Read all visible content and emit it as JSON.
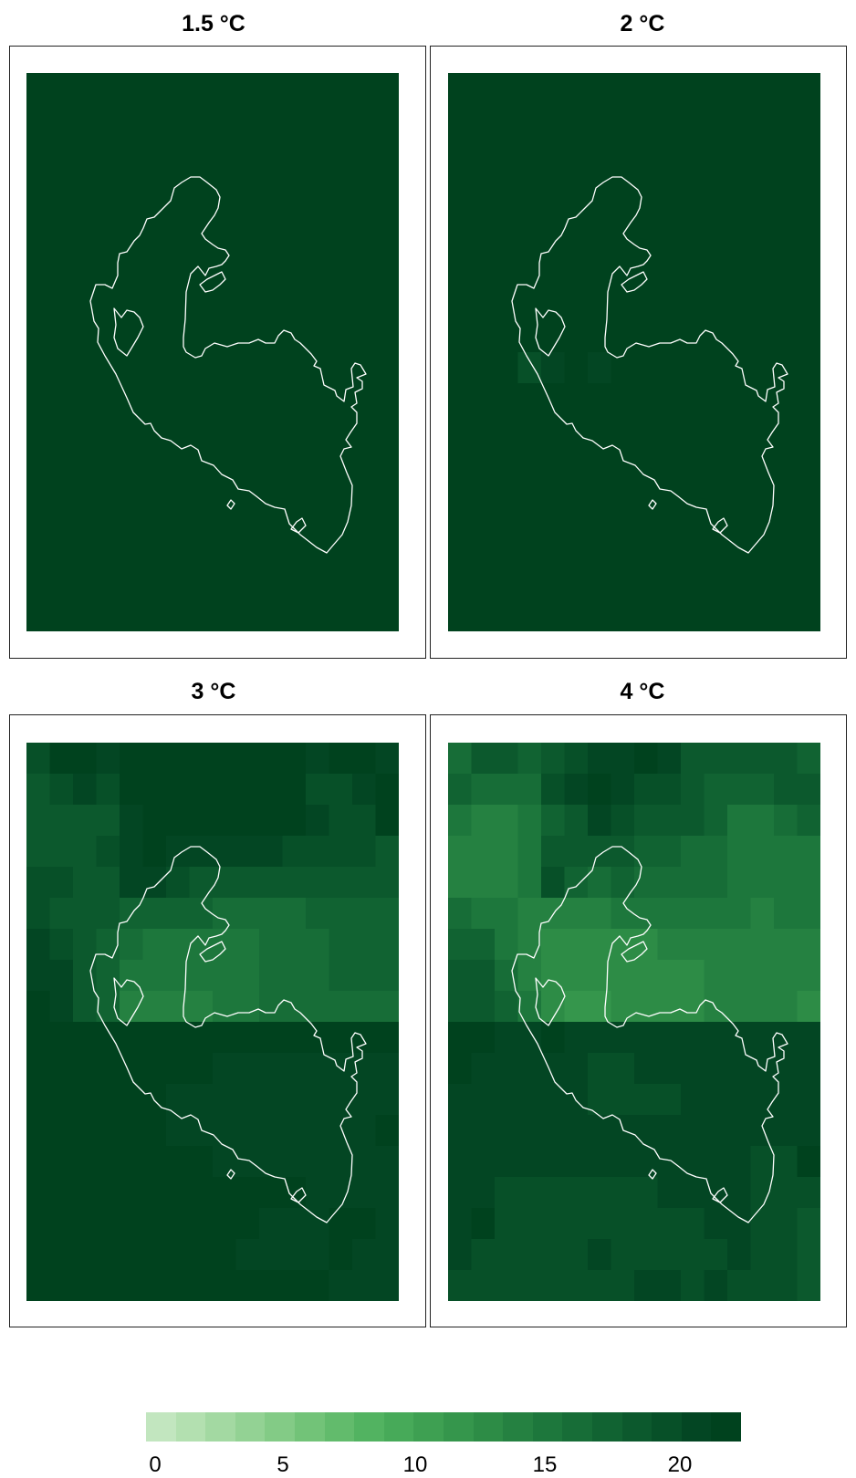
{
  "panels": [
    {
      "title": "1.5 °C"
    },
    {
      "title": "2 °C"
    },
    {
      "title": "3 °C"
    },
    {
      "title": "4 °C"
    }
  ],
  "legend": {
    "ticks": [
      "0",
      "5",
      "10",
      "15",
      "20"
    ],
    "colors": [
      "#c2e6bf",
      "#b3e0b0",
      "#a3d9a2",
      "#93d294",
      "#83cb86",
      "#72c378",
      "#62bb6c",
      "#52b361",
      "#47aa59",
      "#3ea052",
      "#35964c",
      "#2d8c46",
      "#258141",
      "#1d773c",
      "#176d37",
      "#116332",
      "#0c592d",
      "#075028",
      "#034623",
      "#00421e"
    ]
  },
  "chart_data": {
    "type": "heatmap",
    "value_range": [
      0,
      22
    ],
    "maps": [
      {
        "name": "1.5 °C",
        "uniform_value": 22
      },
      {
        "name": "2 °C",
        "uniform_value": 22,
        "note_cells": [
          [
            10,
            3,
            20
          ],
          [
            10,
            4,
            21
          ],
          [
            10,
            6,
            21
          ]
        ]
      },
      {
        "name": "3 °C",
        "grid_rows": 18,
        "grid_cols": 16,
        "rows": [
          [
            20,
            22,
            22,
            21,
            22,
            22,
            22,
            22,
            22,
            22,
            22,
            22,
            21,
            22,
            22,
            21
          ],
          [
            19,
            20,
            21,
            20,
            22,
            22,
            22,
            22,
            22,
            22,
            22,
            22,
            20,
            20,
            21,
            22
          ],
          [
            19,
            18,
            18,
            19,
            21,
            22,
            22,
            22,
            22,
            22,
            22,
            22,
            21,
            20,
            20,
            22
          ],
          [
            19,
            19,
            18,
            20,
            21,
            22,
            21,
            21,
            21,
            21,
            21,
            20,
            20,
            20,
            20,
            19
          ],
          [
            20,
            20,
            18,
            19,
            21,
            21,
            20,
            19,
            18,
            18,
            18,
            18,
            19,
            19,
            19,
            18
          ],
          [
            20,
            19,
            18,
            18,
            17,
            17,
            17,
            17,
            16,
            16,
            16,
            16,
            17,
            17,
            17,
            17
          ],
          [
            21,
            20,
            18,
            17,
            16,
            15,
            15,
            15,
            15,
            15,
            16,
            16,
            16,
            17,
            17,
            17
          ],
          [
            21,
            21,
            19,
            17,
            15,
            15,
            15,
            15,
            15,
            15,
            16,
            16,
            16,
            17,
            17,
            17
          ],
          [
            22,
            21,
            19,
            17,
            14,
            14,
            14,
            14,
            15,
            15,
            16,
            16,
            16,
            16,
            16,
            16
          ],
          [
            22,
            22,
            22,
            22,
            22,
            22,
            22,
            22,
            22,
            22,
            22,
            22,
            22,
            22,
            22,
            22
          ],
          [
            22,
            22,
            22,
            22,
            22,
            22,
            22,
            22,
            21,
            21,
            21,
            21,
            21,
            21,
            21,
            21
          ],
          [
            22,
            22,
            22,
            22,
            22,
            22,
            21,
            21,
            21,
            21,
            21,
            21,
            21,
            21,
            21,
            21
          ],
          [
            22,
            22,
            22,
            22,
            22,
            22,
            21,
            21,
            21,
            21,
            21,
            21,
            21,
            21,
            21,
            22
          ],
          [
            22,
            22,
            22,
            22,
            22,
            22,
            22,
            22,
            21,
            21,
            21,
            21,
            21,
            21,
            21,
            21
          ],
          [
            22,
            22,
            22,
            22,
            22,
            22,
            22,
            22,
            22,
            22,
            22,
            22,
            21,
            21,
            21,
            21
          ],
          [
            22,
            22,
            22,
            22,
            22,
            22,
            22,
            22,
            22,
            22,
            21,
            21,
            21,
            22,
            22,
            21
          ],
          [
            22,
            22,
            22,
            22,
            22,
            22,
            22,
            22,
            22,
            21,
            21,
            21,
            21,
            22,
            21,
            21
          ],
          [
            22,
            22,
            22,
            22,
            22,
            22,
            22,
            22,
            22,
            22,
            22,
            22,
            22,
            21,
            21,
            21
          ]
        ]
      },
      {
        "name": "4 °C",
        "grid_rows": 18,
        "grid_cols": 16,
        "rows": [
          [
            16,
            18,
            19,
            17,
            18,
            20,
            21,
            21,
            22,
            21,
            19,
            19,
            18,
            18,
            18,
            17
          ],
          [
            17,
            16,
            16,
            16,
            20,
            21,
            22,
            21,
            20,
            20,
            19,
            17,
            17,
            17,
            18,
            18
          ],
          [
            15,
            14,
            14,
            15,
            17,
            19,
            21,
            20,
            19,
            18,
            18,
            17,
            15,
            15,
            16,
            17
          ],
          [
            14,
            14,
            14,
            15,
            18,
            19,
            19,
            18,
            17,
            17,
            16,
            16,
            15,
            15,
            15,
            15
          ],
          [
            14,
            14,
            14,
            15,
            20,
            17,
            16,
            17,
            16,
            16,
            16,
            16,
            15,
            15,
            15,
            15
          ],
          [
            16,
            15,
            15,
            14,
            14,
            14,
            14,
            15,
            15,
            15,
            15,
            15,
            15,
            14,
            15,
            15
          ],
          [
            17,
            17,
            15,
            14,
            13,
            13,
            13,
            13,
            13,
            14,
            14,
            14,
            14,
            14,
            14,
            14
          ],
          [
            18,
            18,
            16,
            14,
            13,
            13,
            13,
            13,
            13,
            13,
            13,
            14,
            14,
            14,
            14,
            14
          ],
          [
            18,
            19,
            17,
            15,
            13,
            12,
            12,
            13,
            13,
            13,
            13,
            14,
            14,
            14,
            14,
            13
          ],
          [
            22,
            22,
            21,
            21,
            22,
            21,
            21,
            21,
            21,
            21,
            21,
            21,
            21,
            21,
            21,
            21
          ],
          [
            22,
            21,
            21,
            21,
            21,
            21,
            20,
            20,
            21,
            21,
            21,
            21,
            21,
            21,
            21,
            21
          ],
          [
            21,
            21,
            21,
            21,
            21,
            21,
            20,
            20,
            20,
            20,
            21,
            21,
            21,
            21,
            21,
            21
          ],
          [
            21,
            21,
            21,
            21,
            21,
            21,
            21,
            21,
            21,
            21,
            21,
            21,
            21,
            21,
            21,
            21
          ],
          [
            21,
            21,
            21,
            21,
            21,
            21,
            21,
            21,
            21,
            21,
            21,
            21,
            21,
            20,
            20,
            22
          ],
          [
            21,
            21,
            20,
            20,
            20,
            20,
            20,
            20,
            20,
            21,
            21,
            21,
            21,
            20,
            20,
            20
          ],
          [
            21,
            22,
            20,
            20,
            20,
            20,
            20,
            20,
            20,
            20,
            20,
            21,
            21,
            20,
            20,
            19
          ],
          [
            21,
            20,
            20,
            20,
            20,
            20,
            21,
            20,
            20,
            20,
            20,
            20,
            21,
            20,
            20,
            19
          ],
          [
            20,
            20,
            20,
            20,
            20,
            20,
            20,
            20,
            21,
            21,
            20,
            21,
            20,
            20,
            20,
            19
          ]
        ]
      }
    ]
  }
}
